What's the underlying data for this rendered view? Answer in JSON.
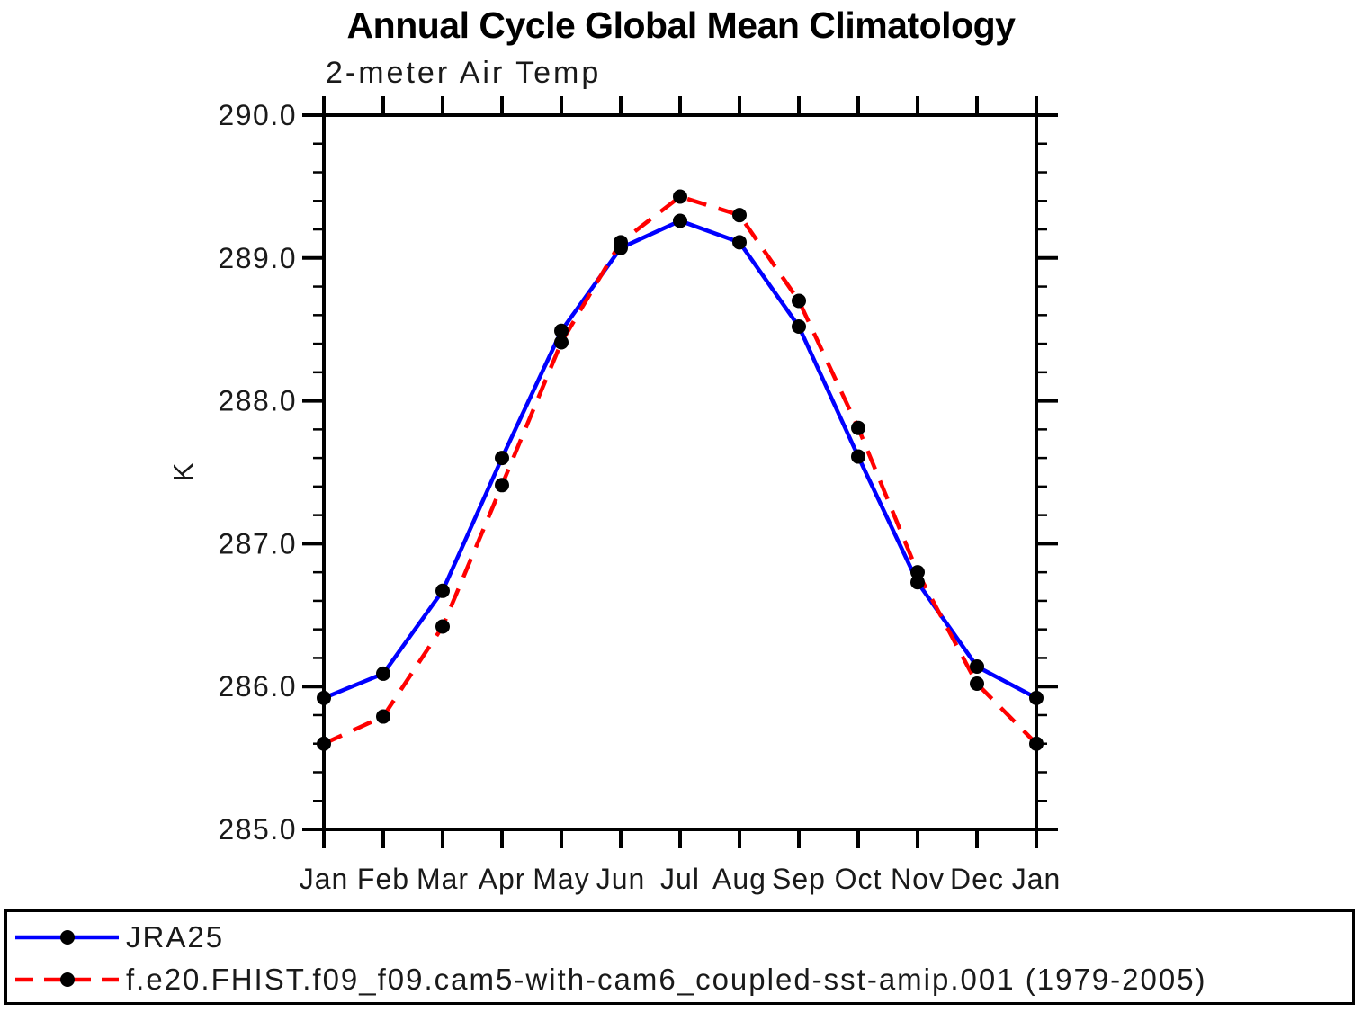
{
  "chart_data": {
    "type": "line",
    "title": "Annual Cycle Global Mean Climatology",
    "subtitle": "2-meter Air Temp",
    "ylabel": "K",
    "ylim": [
      285.0,
      290.0
    ],
    "y_major_tick_step": 1.0,
    "y_minor_tick_step": 0.2,
    "y_major_ticks": [
      285.0,
      286.0,
      287.0,
      288.0,
      289.0,
      290.0
    ],
    "x_categories": [
      "Jan",
      "Feb",
      "Mar",
      "Apr",
      "May",
      "Jun",
      "Jul",
      "Aug",
      "Sep",
      "Oct",
      "Nov",
      "Dec",
      "Jan"
    ],
    "grid": false,
    "legend_position": "bottom-left-box",
    "axis_color": "#000000",
    "marker_color": "#000000",
    "series": [
      {
        "name": "JRA25",
        "color": "#0000ff",
        "line_style": "solid",
        "marker": "filled-circle",
        "values": [
          285.92,
          286.09,
          286.67,
          287.6,
          288.49,
          289.07,
          289.26,
          289.11,
          288.52,
          287.61,
          286.73,
          286.14,
          285.92
        ]
      },
      {
        "name": "f.e20.FHIST.f09_f09.cam5-with-cam6_coupled-sst-amip.001 (1979-2005)",
        "color": "#ff0000",
        "line_style": "dashed",
        "marker": "filled-circle",
        "values": [
          285.6,
          285.79,
          286.42,
          287.41,
          288.41,
          289.11,
          289.43,
          289.3,
          288.7,
          287.81,
          286.8,
          286.02,
          285.6
        ]
      }
    ]
  }
}
